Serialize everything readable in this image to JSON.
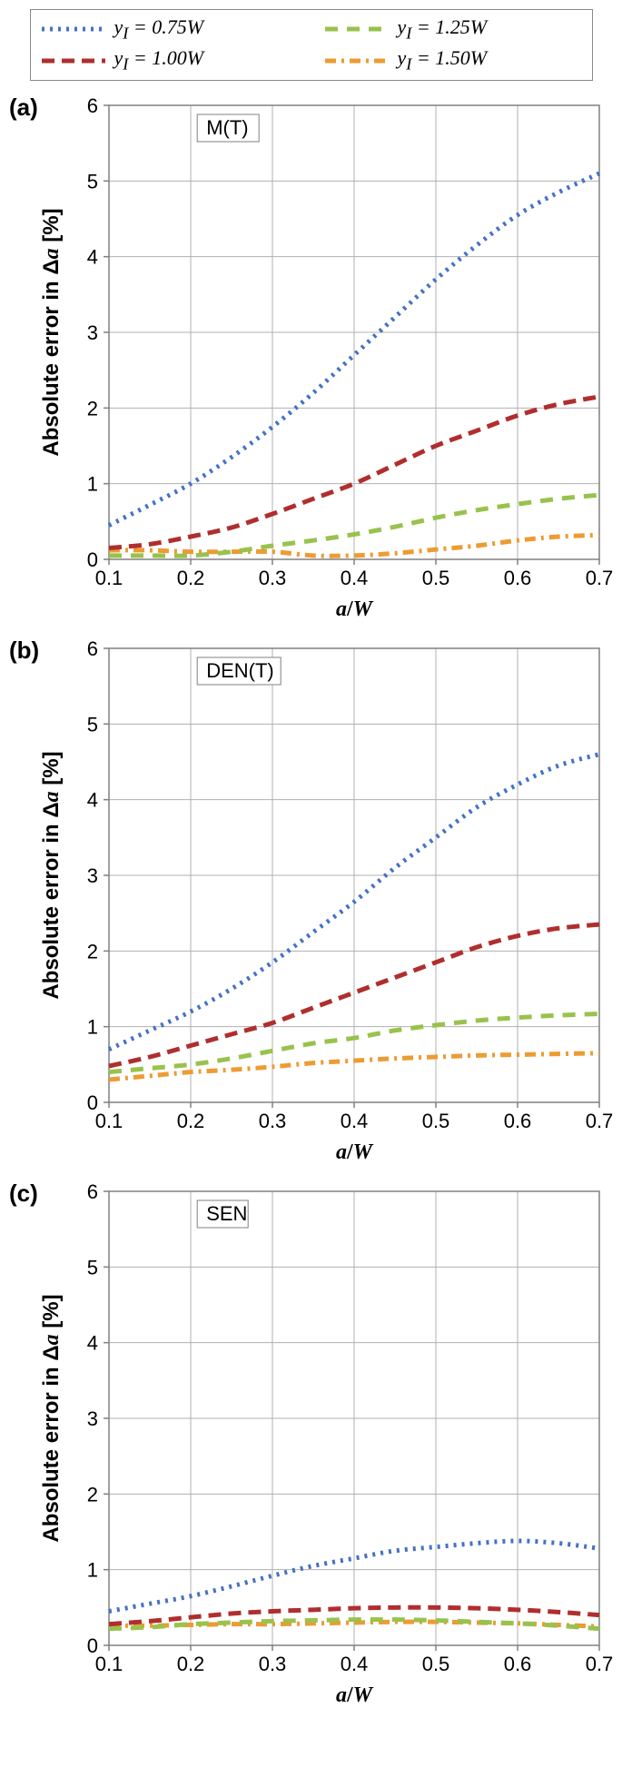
{
  "legend": {
    "items": [
      {
        "key": "s1",
        "label_prefix": "y",
        "label_sub": "I",
        "label_eq": " = 0.75",
        "label_w": "W"
      },
      {
        "key": "s3",
        "label_prefix": "y",
        "label_sub": "I",
        "label_eq": " = 1.25",
        "label_w": "W"
      },
      {
        "key": "s2",
        "label_prefix": "y",
        "label_sub": "I",
        "label_eq": " = 1.00",
        "label_w": "W"
      },
      {
        "key": "s4",
        "label_prefix": "y",
        "label_sub": "I",
        "label_eq": " = 1.50",
        "label_w": "W"
      }
    ]
  },
  "series_style": {
    "s1": {
      "color": "#4472c4",
      "dash": "3,6",
      "width": 5
    },
    "s2": {
      "color": "#b02e2e",
      "dash": "14,8",
      "width": 5
    },
    "s3": {
      "color": "#99c24d",
      "dash": "14,10",
      "width": 5
    },
    "s4": {
      "color": "#ed9b33",
      "dash": "12,6,3,6",
      "width": 5
    }
  },
  "axes": {
    "xlabel_a": "a",
    "xlabel_slash": "/",
    "xlabel_w": "W",
    "ylabel_prefix": "Absolute error in Δ",
    "ylabel_a": "a",
    "ylabel_suffix": " [%]",
    "xlim": [
      0.1,
      0.7
    ],
    "ylim": [
      0,
      6
    ],
    "xticks": [
      0.1,
      0.2,
      0.3,
      0.4,
      0.5,
      0.6,
      0.7
    ],
    "yticks": [
      0,
      1,
      2,
      3,
      4,
      5,
      6
    ],
    "tick_fontsize": 22,
    "label_fontsize": 24,
    "gridline_color": "#b0b0b0",
    "axis_color": "#808080",
    "background_color": "#ffffff"
  },
  "panels": [
    {
      "id": "a",
      "letter": "(a)",
      "tag": "M(T)",
      "series": {
        "s1": [
          [
            0.1,
            0.45
          ],
          [
            0.15,
            0.72
          ],
          [
            0.2,
            1.0
          ],
          [
            0.25,
            1.35
          ],
          [
            0.3,
            1.75
          ],
          [
            0.35,
            2.2
          ],
          [
            0.4,
            2.7
          ],
          [
            0.45,
            3.2
          ],
          [
            0.5,
            3.7
          ],
          [
            0.55,
            4.15
          ],
          [
            0.6,
            4.55
          ],
          [
            0.65,
            4.85
          ],
          [
            0.7,
            5.1
          ]
        ],
        "s2": [
          [
            0.1,
            0.15
          ],
          [
            0.15,
            0.2
          ],
          [
            0.2,
            0.3
          ],
          [
            0.25,
            0.42
          ],
          [
            0.3,
            0.6
          ],
          [
            0.35,
            0.8
          ],
          [
            0.4,
            1.0
          ],
          [
            0.45,
            1.25
          ],
          [
            0.5,
            1.5
          ],
          [
            0.55,
            1.7
          ],
          [
            0.6,
            1.9
          ],
          [
            0.65,
            2.05
          ],
          [
            0.7,
            2.15
          ]
        ],
        "s3": [
          [
            0.1,
            0.05
          ],
          [
            0.15,
            0.05
          ],
          [
            0.2,
            0.05
          ],
          [
            0.25,
            0.1
          ],
          [
            0.3,
            0.18
          ],
          [
            0.35,
            0.25
          ],
          [
            0.4,
            0.33
          ],
          [
            0.45,
            0.43
          ],
          [
            0.5,
            0.55
          ],
          [
            0.55,
            0.65
          ],
          [
            0.6,
            0.73
          ],
          [
            0.65,
            0.8
          ],
          [
            0.7,
            0.85
          ]
        ],
        "s4": [
          [
            0.1,
            0.12
          ],
          [
            0.15,
            0.12
          ],
          [
            0.2,
            0.1
          ],
          [
            0.25,
            0.1
          ],
          [
            0.3,
            0.1
          ],
          [
            0.35,
            0.05
          ],
          [
            0.4,
            0.05
          ],
          [
            0.45,
            0.08
          ],
          [
            0.5,
            0.13
          ],
          [
            0.55,
            0.18
          ],
          [
            0.6,
            0.25
          ],
          [
            0.65,
            0.3
          ],
          [
            0.7,
            0.32
          ]
        ]
      }
    },
    {
      "id": "b",
      "letter": "(b)",
      "tag": "DEN(T)",
      "series": {
        "s1": [
          [
            0.1,
            0.7
          ],
          [
            0.15,
            0.95
          ],
          [
            0.2,
            1.2
          ],
          [
            0.25,
            1.5
          ],
          [
            0.3,
            1.85
          ],
          [
            0.35,
            2.25
          ],
          [
            0.4,
            2.65
          ],
          [
            0.45,
            3.1
          ],
          [
            0.5,
            3.5
          ],
          [
            0.55,
            3.9
          ],
          [
            0.6,
            4.2
          ],
          [
            0.65,
            4.45
          ],
          [
            0.7,
            4.6
          ]
        ],
        "s2": [
          [
            0.1,
            0.48
          ],
          [
            0.15,
            0.6
          ],
          [
            0.2,
            0.75
          ],
          [
            0.25,
            0.9
          ],
          [
            0.3,
            1.05
          ],
          [
            0.35,
            1.25
          ],
          [
            0.4,
            1.45
          ],
          [
            0.45,
            1.65
          ],
          [
            0.5,
            1.85
          ],
          [
            0.55,
            2.05
          ],
          [
            0.6,
            2.2
          ],
          [
            0.65,
            2.3
          ],
          [
            0.7,
            2.35
          ]
        ],
        "s3": [
          [
            0.1,
            0.4
          ],
          [
            0.15,
            0.45
          ],
          [
            0.2,
            0.5
          ],
          [
            0.25,
            0.58
          ],
          [
            0.3,
            0.68
          ],
          [
            0.35,
            0.78
          ],
          [
            0.4,
            0.85
          ],
          [
            0.45,
            0.95
          ],
          [
            0.5,
            1.02
          ],
          [
            0.55,
            1.08
          ],
          [
            0.6,
            1.12
          ],
          [
            0.65,
            1.15
          ],
          [
            0.7,
            1.17
          ]
        ],
        "s4": [
          [
            0.1,
            0.3
          ],
          [
            0.15,
            0.35
          ],
          [
            0.2,
            0.4
          ],
          [
            0.25,
            0.43
          ],
          [
            0.3,
            0.47
          ],
          [
            0.35,
            0.52
          ],
          [
            0.4,
            0.55
          ],
          [
            0.45,
            0.58
          ],
          [
            0.5,
            0.6
          ],
          [
            0.55,
            0.62
          ],
          [
            0.6,
            0.63
          ],
          [
            0.65,
            0.64
          ],
          [
            0.7,
            0.65
          ]
        ]
      }
    },
    {
      "id": "c",
      "letter": "(c)",
      "tag": "SEN",
      "series": {
        "s1": [
          [
            0.1,
            0.45
          ],
          [
            0.15,
            0.55
          ],
          [
            0.2,
            0.65
          ],
          [
            0.25,
            0.78
          ],
          [
            0.3,
            0.92
          ],
          [
            0.35,
            1.05
          ],
          [
            0.4,
            1.15
          ],
          [
            0.45,
            1.25
          ],
          [
            0.5,
            1.3
          ],
          [
            0.55,
            1.35
          ],
          [
            0.6,
            1.38
          ],
          [
            0.65,
            1.35
          ],
          [
            0.7,
            1.28
          ]
        ],
        "s2": [
          [
            0.1,
            0.28
          ],
          [
            0.15,
            0.32
          ],
          [
            0.2,
            0.37
          ],
          [
            0.25,
            0.42
          ],
          [
            0.3,
            0.45
          ],
          [
            0.35,
            0.47
          ],
          [
            0.4,
            0.49
          ],
          [
            0.45,
            0.5
          ],
          [
            0.5,
            0.5
          ],
          [
            0.55,
            0.49
          ],
          [
            0.6,
            0.47
          ],
          [
            0.65,
            0.44
          ],
          [
            0.7,
            0.4
          ]
        ],
        "s3": [
          [
            0.1,
            0.22
          ],
          [
            0.15,
            0.24
          ],
          [
            0.2,
            0.28
          ],
          [
            0.25,
            0.3
          ],
          [
            0.3,
            0.32
          ],
          [
            0.35,
            0.33
          ],
          [
            0.4,
            0.34
          ],
          [
            0.45,
            0.34
          ],
          [
            0.5,
            0.33
          ],
          [
            0.55,
            0.31
          ],
          [
            0.6,
            0.29
          ],
          [
            0.65,
            0.26
          ],
          [
            0.7,
            0.22
          ]
        ],
        "s4": [
          [
            0.1,
            0.26
          ],
          [
            0.15,
            0.26
          ],
          [
            0.2,
            0.27
          ],
          [
            0.25,
            0.28
          ],
          [
            0.3,
            0.28
          ],
          [
            0.35,
            0.29
          ],
          [
            0.4,
            0.3
          ],
          [
            0.45,
            0.31
          ],
          [
            0.5,
            0.31
          ],
          [
            0.55,
            0.3
          ],
          [
            0.6,
            0.29
          ],
          [
            0.65,
            0.27
          ],
          [
            0.7,
            0.25
          ]
        ]
      }
    }
  ]
}
